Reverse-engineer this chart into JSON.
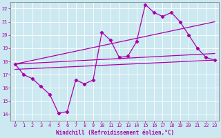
{
  "xlabel": "Windchill (Refroidissement éolien,°C)",
  "background_color": "#cce8f0",
  "grid_color": "#aaddee",
  "line_color": "#aa00aa",
  "xlim": [
    -0.5,
    23.5
  ],
  "ylim": [
    13.5,
    22.5
  ],
  "xticks": [
    0,
    1,
    2,
    3,
    4,
    5,
    6,
    7,
    8,
    9,
    10,
    11,
    12,
    13,
    14,
    15,
    16,
    17,
    18,
    19,
    20,
    21,
    22,
    23
  ],
  "yticks": [
    14,
    15,
    16,
    17,
    18,
    19,
    20,
    21,
    22
  ],
  "line_main": [
    17.8,
    17.0,
    16.7,
    16.1,
    15.5,
    14.1,
    14.2,
    16.6,
    16.3,
    16.6,
    20.2,
    19.6,
    18.3,
    18.4,
    19.5,
    22.3,
    21.7,
    21.4,
    21.7,
    21.0,
    20.0,
    19.0,
    18.3,
    18.1
  ],
  "line_upper": [
    [
      0,
      17.8
    ],
    [
      23,
      21.0
    ]
  ],
  "line_mid": [
    [
      0,
      17.8
    ],
    [
      23,
      18.6
    ]
  ],
  "line_lower": [
    [
      0,
      17.4
    ],
    [
      23,
      18.1
    ]
  ]
}
